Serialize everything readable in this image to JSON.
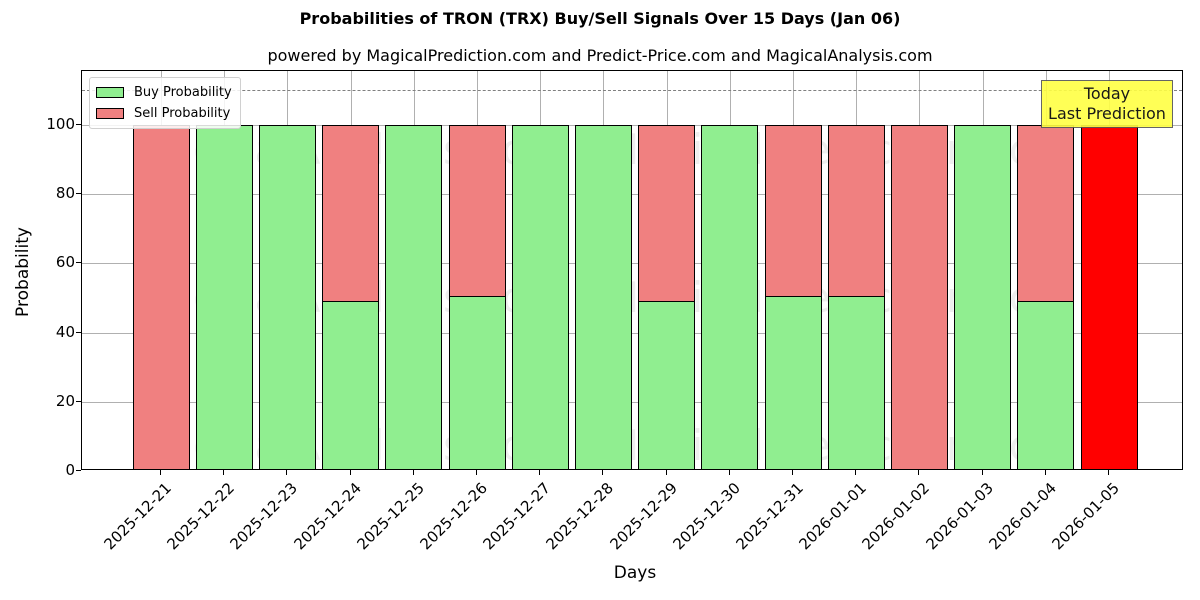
{
  "header": {
    "title": "Probabilities of TRON (TRX) Buy/Sell Signals Over 15 Days (Jan 06)",
    "subtitle": "powered by MagicalPrediction.com and Predict-Price.com and MagicalAnalysis.com"
  },
  "legend": {
    "buy_label": "Buy Probability",
    "sell_label": "Sell Probability"
  },
  "annotation": {
    "line1": "Today",
    "line2": "Last Prediction"
  },
  "watermarks": [
    "MagicalAnalysis.com",
    "MagicalPrediction.com"
  ],
  "axes": {
    "xlabel": "Days",
    "ylabel": "Probability",
    "yticks": [
      "0",
      "20",
      "40",
      "60",
      "80",
      "100"
    ]
  },
  "colors": {
    "buy": "#90ee90",
    "sell": "#f08080",
    "today": "#ff0000",
    "annotation_bg": "#ffff44"
  },
  "chart_data": {
    "type": "bar",
    "stacked": true,
    "title": "Probabilities of TRON (TRX) Buy/Sell Signals Over 15 Days (Jan 06)",
    "subtitle": "powered by MagicalPrediction.com and Predict-Price.com and MagicalAnalysis.com",
    "xlabel": "Days",
    "ylabel": "Probability",
    "ylim": [
      0,
      115
    ],
    "yticks": [
      0,
      20,
      40,
      60,
      80,
      100
    ],
    "reference_line": 110,
    "grid": true,
    "legend_position": "upper left",
    "categories": [
      "2025-12-21",
      "2025-12-22",
      "2025-12-23",
      "2025-12-24",
      "2025-12-25",
      "2025-12-26",
      "2025-12-27",
      "2025-12-28",
      "2025-12-29",
      "2025-12-30",
      "2025-12-31",
      "2026-01-01",
      "2026-01-02",
      "2026-01-03",
      "2026-01-04",
      "2026-01-05"
    ],
    "series": [
      {
        "name": "Buy Probability",
        "values": [
          0,
          100,
          100,
          49.4,
          100,
          50.9,
          100,
          100,
          49.4,
          100,
          50.9,
          50.9,
          0,
          100,
          49.4,
          0
        ]
      },
      {
        "name": "Sell Probability",
        "values": [
          100,
          0,
          0,
          50.6,
          0,
          49.1,
          0,
          0,
          50.6,
          0,
          49.1,
          49.1,
          100,
          0,
          50.6,
          100
        ]
      }
    ],
    "annotations": [
      {
        "x": "2026-01-05",
        "text": "Today\nLast Prediction",
        "highlight_color": "#ff0000"
      }
    ]
  }
}
